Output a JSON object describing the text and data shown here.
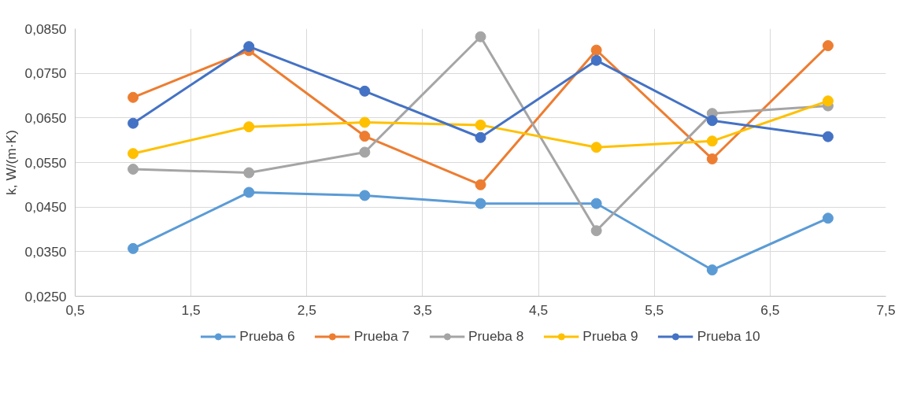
{
  "chart_data": {
    "type": "line",
    "ylabel": "k, W/(m·K)",
    "x": [
      1,
      2,
      3,
      4,
      5,
      6,
      7
    ],
    "series": [
      {
        "name": "Prueba 6",
        "color": "#5b9bd5",
        "values": [
          0.0357,
          0.0483,
          0.0476,
          0.0458,
          0.0458,
          0.0309,
          0.0425
        ]
      },
      {
        "name": "Prueba 7",
        "color": "#ed7d31",
        "values": [
          0.0696,
          0.0801,
          0.0609,
          0.05,
          0.0802,
          0.0558,
          0.0812
        ]
      },
      {
        "name": "Prueba 8",
        "color": "#a5a5a5",
        "values": [
          0.0535,
          0.0527,
          0.0573,
          0.0832,
          0.0397,
          0.066,
          0.0677
        ]
      },
      {
        "name": "Prueba 9",
        "color": "#ffc000",
        "values": [
          0.057,
          0.063,
          0.064,
          0.0634,
          0.0584,
          0.0598,
          0.0688
        ]
      },
      {
        "name": "Prueba 10",
        "color": "#4472c4",
        "values": [
          0.0638,
          0.081,
          0.071,
          0.0606,
          0.0779,
          0.0644,
          0.0608
        ]
      }
    ],
    "xlim": [
      0.5,
      7.5
    ],
    "xticks": [
      {
        "value": 0.5,
        "label": "0,5"
      },
      {
        "value": 1.5,
        "label": "1,5"
      },
      {
        "value": 2.5,
        "label": "2,5"
      },
      {
        "value": 3.5,
        "label": "3,5"
      },
      {
        "value": 4.5,
        "label": "4,5"
      },
      {
        "value": 5.5,
        "label": "5,5"
      },
      {
        "value": 6.5,
        "label": "6,5"
      },
      {
        "value": 7.5,
        "label": "7,5"
      }
    ],
    "ylim": [
      0.025,
      0.085
    ],
    "yticks": [
      {
        "value": 0.025,
        "label": "0,0250"
      },
      {
        "value": 0.035,
        "label": "0,0350"
      },
      {
        "value": 0.045,
        "label": "0,0450"
      },
      {
        "value": 0.055,
        "label": "0,0550"
      },
      {
        "value": 0.065,
        "label": "0,0650"
      },
      {
        "value": 0.075,
        "label": "0,0750"
      },
      {
        "value": 0.085,
        "label": "0,0850"
      }
    ],
    "grid": true,
    "legend": "bottom",
    "marker": "circle",
    "line_style": "solid"
  }
}
